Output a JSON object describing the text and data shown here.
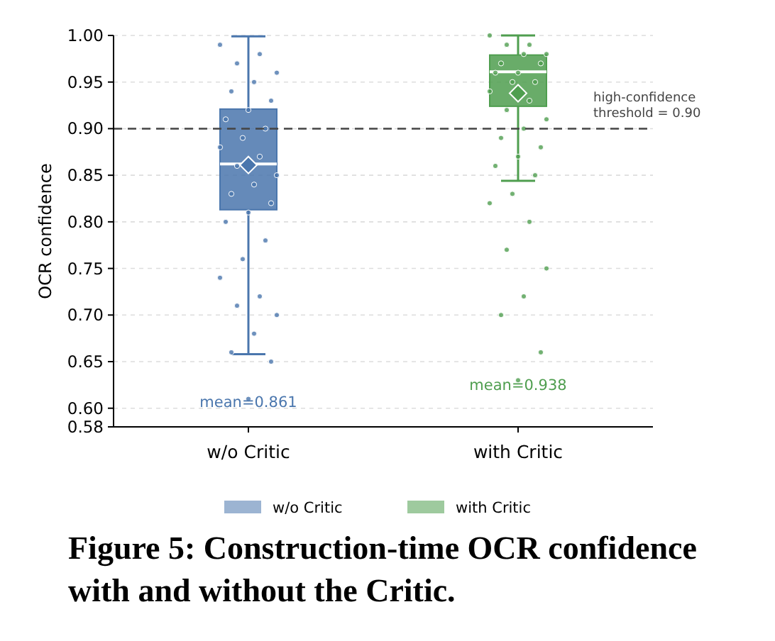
{
  "chart_data": {
    "type": "box",
    "title": "Figure 5: Construction-time OCR confidence with and without the Critic.",
    "categories": [
      "w/o Critic",
      "with Critic"
    ],
    "colors": [
      "#4a76ad",
      "#4f9e4f"
    ],
    "boxes": [
      {
        "low": 0.658,
        "q1": 0.813,
        "median": 0.862,
        "q3": 0.921,
        "high": 0.999,
        "mean": 0.861
      },
      {
        "low": 0.844,
        "q1": 0.924,
        "median": 0.961,
        "q3": 0.979,
        "high": 1.0,
        "mean": 0.938
      }
    ],
    "series": [
      {
        "type": "scatter",
        "name": "w/o Critic",
        "color": "#4a76ad",
        "x": [
          "w/o Critic",
          "w/o Critic",
          "w/o Critic",
          "w/o Critic",
          "w/o Critic",
          "w/o Critic",
          "w/o Critic",
          "w/o Critic",
          "w/o Critic",
          "w/o Critic",
          "w/o Critic",
          "w/o Critic",
          "w/o Critic",
          "w/o Critic",
          "w/o Critic",
          "w/o Critic",
          "w/o Critic",
          "w/o Critic",
          "w/o Critic",
          "w/o Critic",
          "w/o Critic",
          "w/o Critic",
          "w/o Critic",
          "w/o Critic",
          "w/o Critic",
          "w/o Critic",
          "w/o Critic",
          "w/o Critic",
          "w/o Critic",
          "w/o Critic"
        ],
        "values": [
          0.99,
          0.98,
          0.97,
          0.96,
          0.95,
          0.94,
          0.93,
          0.92,
          0.91,
          0.9,
          0.89,
          0.88,
          0.87,
          0.86,
          0.85,
          0.84,
          0.83,
          0.82,
          0.81,
          0.8,
          0.78,
          0.76,
          0.74,
          0.72,
          0.71,
          0.7,
          0.68,
          0.66,
          0.65,
          0.61
        ]
      },
      {
        "type": "scatter",
        "name": "with Critic",
        "color": "#4f9e4f",
        "x": [
          "with Critic",
          "with Critic",
          "with Critic",
          "with Critic",
          "with Critic",
          "with Critic",
          "with Critic",
          "with Critic",
          "with Critic",
          "with Critic",
          "with Critic",
          "with Critic",
          "with Critic",
          "with Critic",
          "with Critic",
          "with Critic",
          "with Critic",
          "with Critic",
          "with Critic",
          "with Critic",
          "with Critic",
          "with Critic",
          "with Critic",
          "with Critic",
          "with Critic",
          "with Critic",
          "with Critic",
          "with Critic",
          "with Critic",
          "with Critic"
        ],
        "values": [
          1.0,
          0.99,
          0.99,
          0.98,
          0.98,
          0.97,
          0.97,
          0.96,
          0.96,
          0.95,
          0.95,
          0.94,
          0.93,
          0.92,
          0.91,
          0.9,
          0.89,
          0.88,
          0.87,
          0.86,
          0.85,
          0.83,
          0.82,
          0.8,
          0.77,
          0.75,
          0.72,
          0.7,
          0.66,
          0.63
        ]
      }
    ],
    "ylabel": "OCR confidence",
    "ylim": [
      0.58,
      1.0
    ],
    "yticks": [
      0.58,
      {
        "value": 0.6,
        "label": "0.60"
      },
      0.65,
      {
        "value": 0.7,
        "label": "0.70"
      },
      0.75,
      {
        "value": 0.8,
        "label": "0.80"
      },
      0.85,
      {
        "value": 0.9,
        "label": "0.90"
      },
      0.95,
      {
        "value": 1.0,
        "label": "1.00"
      }
    ],
    "grid": "y",
    "marker": "circle",
    "legend": "bottom",
    "ref_lines": [
      {
        "axis": "y",
        "value": 0.9,
        "label": "high-confidence threshold = 0.90",
        "color": "#444444",
        "line_style": "dashed"
      }
    ],
    "annotations": [
      "mean=0.861",
      "mean=0.938"
    ]
  }
}
